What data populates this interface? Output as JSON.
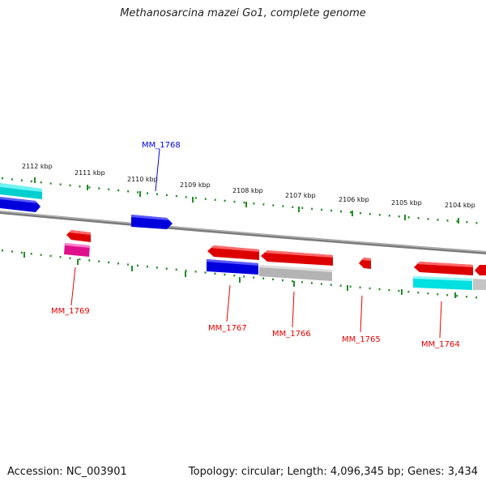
{
  "title": "Methanosarcina mazei Go1, complete genome",
  "footer": {
    "accession": "Accession: NC_003901",
    "summary": "Topology: circular; Length: 4,096,345 bp; Genes: 3,434"
  },
  "scale_labels": [
    "2112 kbp",
    "2111 kbp",
    "2110 kbp",
    "2109 kbp",
    "2108 kbp",
    "2107 kbp",
    "2106 kbp",
    "2105 kbp",
    "2104 kbp"
  ],
  "gene_labels": {
    "mm1768": "MM_1768",
    "mm1769": "MM_1769",
    "mm1767": "MM_1767",
    "mm1766": "MM_1766",
    "mm1765": "MM_1765",
    "mm1764": "MM_1764"
  },
  "colors": {
    "backbone": "#808080",
    "ticks": "#228B22",
    "forward_gene": "#0000ee",
    "reverse_gene": "#ee0000",
    "cyan_feature": "#00e5e5",
    "pink_feature": "#ee1493",
    "gray_feature": "#b8b8b8"
  }
}
